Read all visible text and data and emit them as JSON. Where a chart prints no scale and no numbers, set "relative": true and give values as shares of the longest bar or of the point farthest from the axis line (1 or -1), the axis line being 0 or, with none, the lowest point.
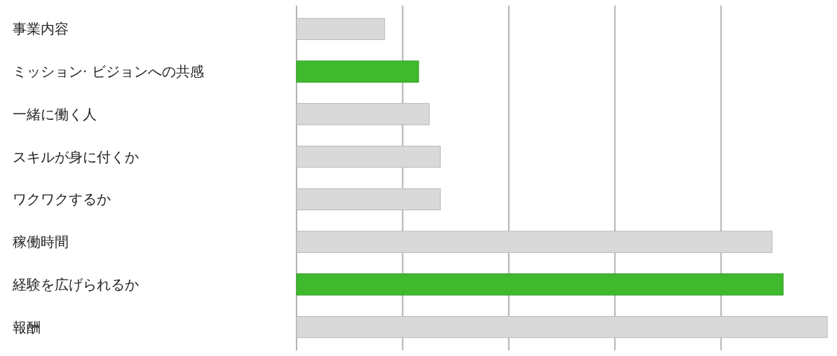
{
  "chart_data": {
    "type": "bar",
    "orientation": "horizontal",
    "relative": true,
    "grid": "x",
    "categories": [
      "事業内容",
      "ミッション· ビジョンへの共感",
      "一緒に働く人",
      "スキルが身に付くか",
      "ワクワクするか",
      "稼働時間",
      "経験を広げられるか",
      "報酬"
    ],
    "values": [
      0.166,
      0.23,
      0.25,
      0.271,
      0.271,
      0.896,
      0.917,
      1
    ],
    "colors": [
      "#d9d9d9",
      "#3fba2f",
      "#d9d9d9",
      "#d9d9d9",
      "#d9d9d9",
      "#d9d9d9",
      "#3fba2f",
      "#d9d9d9"
    ]
  }
}
